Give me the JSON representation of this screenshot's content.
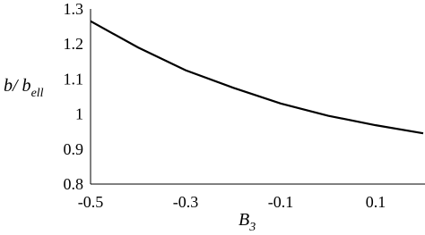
{
  "chart_data": {
    "type": "line",
    "x_label": {
      "main": "B",
      "sub": "3"
    },
    "y_label": {
      "main": "b/ b",
      "sub": "ell"
    },
    "x": [
      -0.5,
      -0.4,
      -0.3,
      -0.2,
      -0.1,
      0.0,
      0.1,
      0.2
    ],
    "series": [
      {
        "color": "#000000",
        "values": [
          1.265,
          1.19,
          1.125,
          1.075,
          1.03,
          0.995,
          0.968,
          0.945
        ]
      }
    ],
    "xlim": [
      -0.5,
      0.2
    ],
    "xticks": [
      -0.5,
      -0.3,
      -0.1,
      0.1
    ],
    "ylim": [
      0.8,
      1.3
    ],
    "yticks": [
      0.8,
      0.9,
      1,
      1.1,
      1.2,
      1.3
    ],
    "grid": false
  }
}
